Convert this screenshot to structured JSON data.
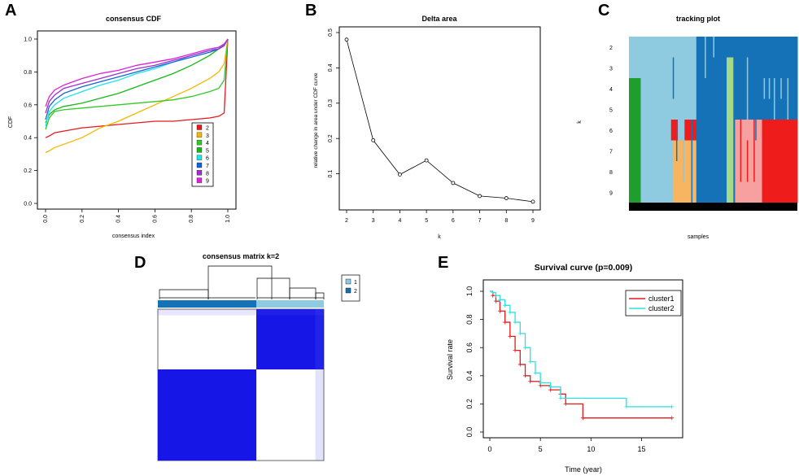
{
  "panels": {
    "a": "A",
    "b": "B",
    "c": "C",
    "d": "D",
    "e": "E"
  },
  "colors": {
    "k2": "#e41a1c",
    "k3": "#f5b700",
    "k4": "#33c92a",
    "k5": "#17b817",
    "k6": "#1ee3e8",
    "k7": "#1464d8",
    "k8": "#a12fc8",
    "k9": "#dd22dd",
    "track_lightblue": "#8ecae0",
    "track_darkblue": "#1672b6",
    "track_green": "#1f9e2f",
    "track_orange": "#f7b561",
    "track_lightgreen": "#a6d98a",
    "track_red": "#ef1c1c",
    "track_pink": "#f6a0a0",
    "heat_blue": "#1616e6",
    "cluster1": "#e41a1c",
    "cluster2": "#27e2e6"
  },
  "chart_data": [
    {
      "id": "A",
      "type": "line",
      "title": "consensus CDF",
      "xlabel": "consensus index",
      "ylabel": "CDF",
      "xlim": [
        0,
        1
      ],
      "ylim": [
        0,
        1
      ],
      "xticks": [
        "0.0",
        "0.2",
        "0.4",
        "0.6",
        "0.8",
        "1.0"
      ],
      "yticks": [
        "0.0",
        "0.2",
        "0.4",
        "0.6",
        "0.8",
        "1.0"
      ],
      "x": [
        0.0,
        0.02,
        0.05,
        0.1,
        0.2,
        0.3,
        0.4,
        0.5,
        0.6,
        0.7,
        0.8,
        0.9,
        0.95,
        0.98,
        1.0
      ],
      "series": [
        {
          "name": "2",
          "values": [
            0.4,
            0.41,
            0.43,
            0.44,
            0.46,
            0.47,
            0.48,
            0.49,
            0.5,
            0.5,
            0.51,
            0.52,
            0.53,
            0.55,
            1.0
          ]
        },
        {
          "name": "3",
          "values": [
            0.31,
            0.32,
            0.34,
            0.36,
            0.4,
            0.46,
            0.5,
            0.55,
            0.6,
            0.65,
            0.7,
            0.76,
            0.8,
            0.85,
            1.0
          ]
        },
        {
          "name": "4",
          "values": [
            0.45,
            0.52,
            0.56,
            0.57,
            0.58,
            0.59,
            0.6,
            0.61,
            0.62,
            0.63,
            0.65,
            0.68,
            0.7,
            0.75,
            1.0
          ]
        },
        {
          "name": "5",
          "values": [
            0.49,
            0.54,
            0.57,
            0.59,
            0.61,
            0.64,
            0.67,
            0.71,
            0.75,
            0.79,
            0.84,
            0.9,
            0.94,
            0.97,
            1.0
          ]
        },
        {
          "name": "6",
          "values": [
            0.47,
            0.56,
            0.6,
            0.64,
            0.68,
            0.72,
            0.75,
            0.79,
            0.82,
            0.86,
            0.9,
            0.93,
            0.95,
            0.97,
            1.0
          ]
        },
        {
          "name": "7",
          "values": [
            0.51,
            0.59,
            0.63,
            0.67,
            0.71,
            0.74,
            0.77,
            0.8,
            0.83,
            0.86,
            0.89,
            0.92,
            0.94,
            0.96,
            1.0
          ]
        },
        {
          "name": "8",
          "values": [
            0.55,
            0.62,
            0.66,
            0.7,
            0.73,
            0.76,
            0.79,
            0.82,
            0.84,
            0.87,
            0.9,
            0.93,
            0.94,
            0.96,
            1.0
          ]
        },
        {
          "name": "9",
          "values": [
            0.59,
            0.65,
            0.69,
            0.72,
            0.76,
            0.79,
            0.81,
            0.84,
            0.86,
            0.88,
            0.91,
            0.94,
            0.95,
            0.97,
            1.0
          ]
        }
      ],
      "legend": [
        "2",
        "3",
        "4",
        "5",
        "6",
        "7",
        "8",
        "9"
      ]
    },
    {
      "id": "B",
      "type": "line",
      "title": "Delta area",
      "xlabel": "k",
      "ylabel": "relative change in area under CDF curve",
      "x": [
        2,
        3,
        4,
        5,
        6,
        7,
        8,
        9
      ],
      "values": [
        0.48,
        0.195,
        0.098,
        0.138,
        0.074,
        0.037,
        0.031,
        0.021
      ],
      "xticks": [
        "2",
        "3",
        "4",
        "5",
        "6",
        "7",
        "8",
        "9"
      ],
      "yticks": [
        "0.1",
        "0.2",
        "0.3",
        "0.4",
        "0.5"
      ],
      "ylim": [
        0.0,
        0.5
      ]
    },
    {
      "id": "C",
      "type": "heatmap",
      "title": "tracking plot",
      "xlabel": "samples",
      "ylabel": "k",
      "rows": [
        "2",
        "3",
        "4",
        "5",
        "6",
        "7",
        "8",
        "9"
      ]
    },
    {
      "id": "D",
      "type": "heatmap",
      "title": "consensus matrix k=2",
      "legend": [
        "1",
        "2"
      ]
    },
    {
      "id": "E",
      "type": "line",
      "title": "Survival curve (p=0.009)",
      "xlabel": "Time (year)",
      "ylabel": "Survival rate",
      "xlim": [
        0,
        18.5
      ],
      "ylim": [
        0,
        1
      ],
      "xticks": [
        "0",
        "5",
        "10",
        "15"
      ],
      "yticks": [
        "0.0",
        "0.2",
        "0.4",
        "0.6",
        "0.8",
        "1.0"
      ],
      "series": [
        {
          "name": "cluster1",
          "x": [
            0,
            0.3,
            0.6,
            1.0,
            1.5,
            2.0,
            2.5,
            3.0,
            3.5,
            4.0,
            5.0,
            6.0,
            7.0,
            7.5,
            9.2,
            18.0
          ],
          "values": [
            1.0,
            0.97,
            0.93,
            0.86,
            0.78,
            0.68,
            0.58,
            0.48,
            0.4,
            0.36,
            0.33,
            0.3,
            0.27,
            0.2,
            0.1,
            0.1
          ]
        },
        {
          "name": "cluster2",
          "x": [
            0,
            0.3,
            0.6,
            1.0,
            1.5,
            2.0,
            2.5,
            3.0,
            3.5,
            4.0,
            4.5,
            5.0,
            6.0,
            7.0,
            13.5,
            18.0
          ],
          "values": [
            1.0,
            0.99,
            0.97,
            0.94,
            0.9,
            0.85,
            0.78,
            0.7,
            0.6,
            0.5,
            0.42,
            0.35,
            0.32,
            0.24,
            0.18,
            0.18
          ]
        }
      ]
    }
  ]
}
